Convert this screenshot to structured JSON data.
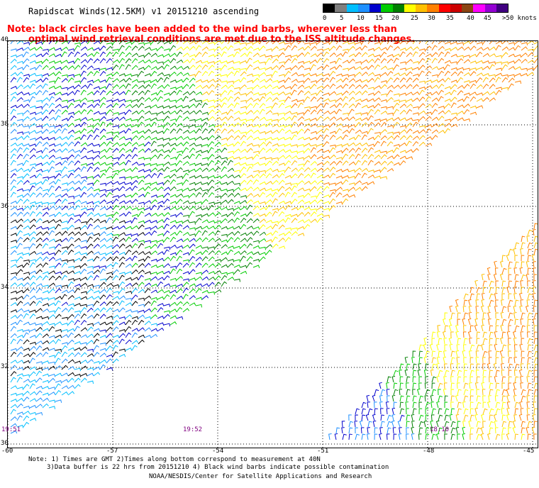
{
  "header": {
    "title": "Rapidscat Winds(12.5KM) v1 20151210 ascending",
    "note_line1": "Note: black circles have been added to the wind barbs, wherever less than",
    "note_line2": "optimal wind retrieval conditions are met due to the ISS altitude changes."
  },
  "legend": {
    "unit": ">50 knots",
    "labels": [
      "0",
      "5",
      "10",
      "15",
      "20",
      "25",
      "30",
      "35",
      "40",
      "45",
      ">50 knots"
    ],
    "colors": [
      "#000000",
      "#7f7f7f",
      "#00bfff",
      "#1e90ff",
      "#0000cd",
      "#00cc00",
      "#007f00",
      "#ffff00",
      "#ffc000",
      "#ff8000",
      "#ff0000",
      "#cc0000",
      "#8b4513",
      "#ff00ff",
      "#9400d3",
      "#400080"
    ]
  },
  "map": {
    "lat_labels": [
      "40",
      "38",
      "36",
      "34",
      "32",
      "30"
    ],
    "lon_labels": [
      "-60",
      "-57",
      "-54",
      "-51",
      "-48",
      "-45"
    ],
    "times": [
      "19:51",
      "19:52",
      "18:10"
    ]
  },
  "footer": {
    "line1": "Note: 1) Times are GMT 2)Times along bottom correspond to measurement at 40N",
    "line2": "3)Data buffer is 22 hrs from 20151210 4) Black wind barbs indicate possible contamination",
    "credit": "NOAA/NESDIS/Center for Satellite Applications and Research"
  }
}
